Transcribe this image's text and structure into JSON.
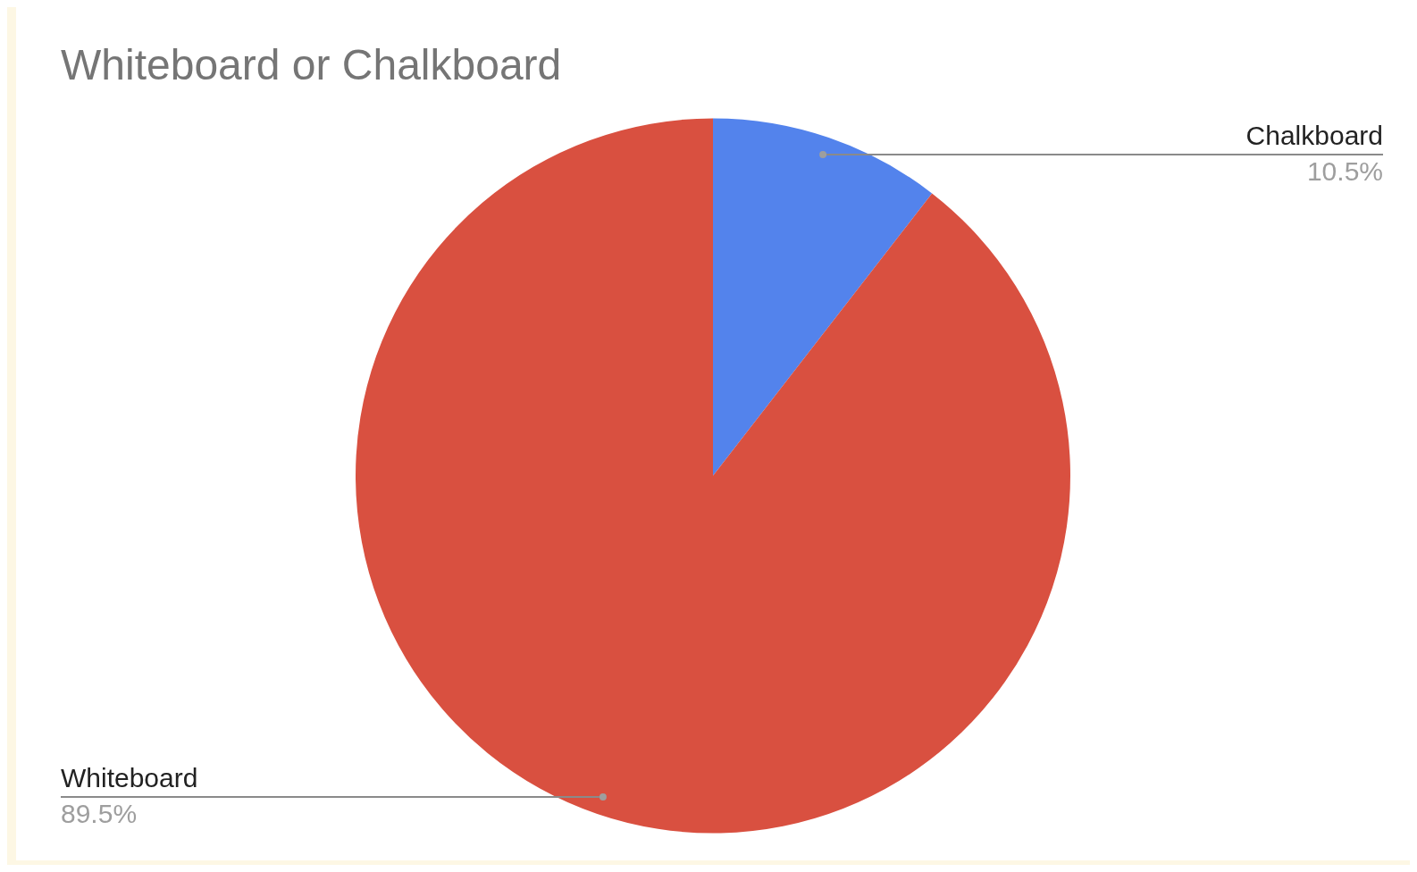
{
  "chart_data": {
    "type": "pie",
    "title": "Whiteboard or Chalkboard",
    "categories": [
      "Chalkboard",
      "Whiteboard"
    ],
    "values": [
      10.5,
      89.5
    ],
    "colors": [
      "#5383ec",
      "#d95040"
    ],
    "value_labels": [
      "10.5%",
      "89.5%"
    ],
    "legend": false
  }
}
